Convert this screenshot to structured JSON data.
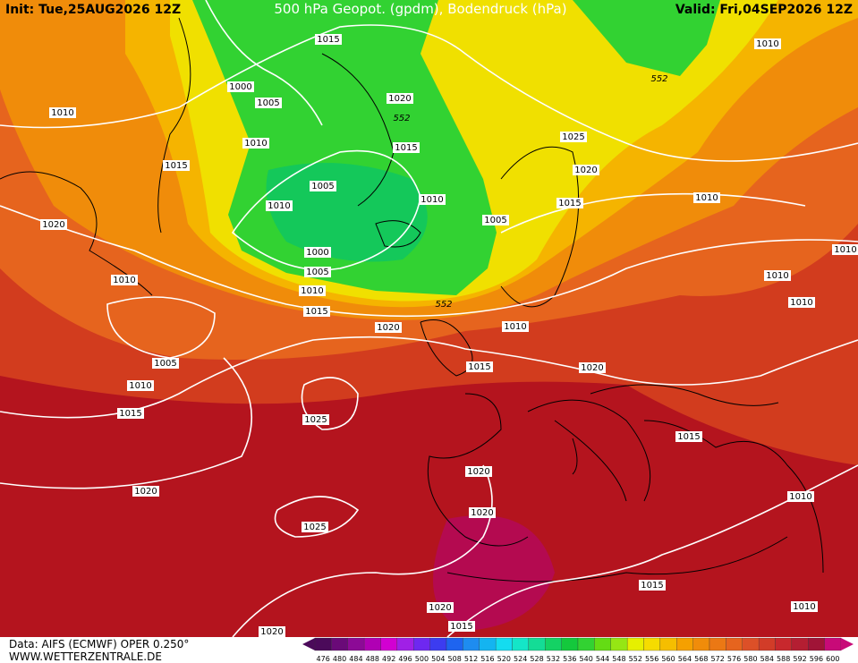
{
  "header": {
    "init": "Init: Tue,25AUG2026 12Z",
    "title": "500 hPa Geopot. (gpdm), Bodendruck (hPa)",
    "valid": "Valid: Fri,04SEP2026 12Z"
  },
  "footer": {
    "data": "Data: AIFS (ECMWF) OPER 0.250°",
    "site": "WWW.WETTERZENTRALE.DE"
  },
  "isobar_labels": [
    1015,
    1000,
    1005,
    1010,
    1010,
    1020,
    552,
    1015,
    1015,
    1005,
    1010,
    1010,
    1020,
    1005,
    1000,
    1005,
    1010,
    1010,
    1015,
    552,
    1020,
    1010,
    1005,
    1010,
    1015,
    1020,
    1015,
    1025,
    1015,
    1020,
    1020,
    1020,
    1025,
    1015,
    1020,
    1015,
    1020,
    1010,
    1010,
    1010,
    1010,
    1010,
    1015,
    1020,
    1025,
    1010,
    552,
    1010
  ],
  "colorbar": {
    "ticks": [
      476,
      480,
      484,
      488,
      492,
      496,
      500,
      504,
      508,
      512,
      516,
      520,
      524,
      528,
      532,
      536,
      540,
      544,
      548,
      552,
      556,
      560,
      564,
      568,
      572,
      576,
      580,
      584,
      588,
      592,
      596,
      600
    ],
    "colors": [
      "#4b0a5a",
      "#6a0a78",
      "#8c0a96",
      "#b000b4",
      "#d200d2",
      "#a020e6",
      "#6e28f0",
      "#3c3cf0",
      "#1e64f0",
      "#1e8cf0",
      "#14b4f0",
      "#14dcf0",
      "#14e6c8",
      "#14dc96",
      "#14d264",
      "#14c83c",
      "#32d232",
      "#64dc14",
      "#96e614",
      "#e6f000",
      "#f5dc00",
      "#f5be00",
      "#f5a000",
      "#f08c0a",
      "#eb7814",
      "#e6641e",
      "#dc5028",
      "#d23c28",
      "#c8282d",
      "#b41e32",
      "#a01437",
      "#c80a78"
    ]
  }
}
